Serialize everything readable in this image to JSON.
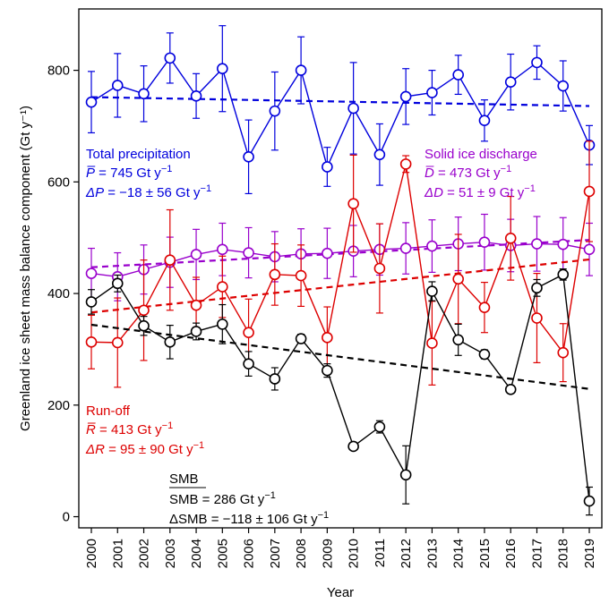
{
  "chart_data": {
    "type": "line",
    "xlabel": "Year",
    "ylabel": "Greenland ice sheet mass balance component (Gt y⁻¹)",
    "x": [
      2000,
      2001,
      2002,
      2003,
      2004,
      2005,
      2006,
      2007,
      2008,
      2009,
      2010,
      2011,
      2012,
      2013,
      2014,
      2015,
      2016,
      2017,
      2018,
      2019
    ],
    "ylim": [
      -20,
      910
    ],
    "yticks": [
      0,
      200,
      400,
      600,
      800
    ],
    "grid": false,
    "series": [
      {
        "key": "precipitation",
        "color": "#0000dd",
        "values": [
          743,
          773,
          758,
          822,
          754,
          803,
          645,
          727,
          800,
          627,
          732,
          649,
          753,
          760,
          792,
          710,
          779,
          814,
          772,
          666
        ],
        "errors": [
          55,
          57,
          50,
          45,
          40,
          77,
          66,
          70,
          60,
          35,
          82,
          55,
          50,
          40,
          35,
          37,
          50,
          30,
          45,
          35
        ],
        "trend": [
          752,
          736
        ]
      },
      {
        "key": "discharge",
        "color": "#9900cc",
        "values": [
          436,
          430,
          443,
          456,
          470,
          479,
          473,
          466,
          471,
          472,
          476,
          479,
          481,
          485,
          489,
          492,
          486,
          489,
          488,
          479
        ],
        "errors": [
          45,
          43,
          44,
          45,
          45,
          47,
          45,
          45,
          45,
          45,
          46,
          46,
          46,
          47,
          48,
          50,
          47,
          49,
          48,
          47
        ],
        "trend": [
          447,
          496
        ]
      },
      {
        "key": "runoff",
        "color": "#dd0000",
        "values": [
          313,
          312,
          370,
          460,
          379,
          412,
          330,
          434,
          432,
          321,
          561,
          445,
          632,
          311,
          426,
          375,
          499,
          356,
          294,
          583
        ],
        "errors": [
          48,
          80,
          90,
          90,
          50,
          55,
          60,
          55,
          55,
          55,
          87,
          80,
          15,
          75,
          80,
          45,
          75,
          80,
          52,
          90
        ],
        "trend": [
          366,
          461
        ]
      },
      {
        "key": "smb",
        "color": "#000000",
        "values": [
          385,
          418,
          342,
          313,
          332,
          345,
          274,
          247,
          319,
          262,
          126,
          161,
          75,
          404,
          317,
          291,
          228,
          410,
          434,
          28
        ],
        "errors": [
          22,
          15,
          17,
          30,
          15,
          35,
          22,
          20,
          8,
          12,
          6,
          11,
          52,
          17,
          28,
          8,
          7,
          15,
          10,
          25
        ],
        "trend": [
          344,
          229
        ]
      }
    ],
    "annotations": {
      "precipitation": {
        "name": "Total precipitation",
        "mean_symbol": "P̅",
        "mean_text": " = 745 Gt y",
        "delta_symbol": "ΔP",
        "delta_text": " = −18 ± 56 Gt y",
        "unit_exp": "−1"
      },
      "discharge": {
        "name": "Solid ice discharge",
        "mean_symbol": "D̅",
        "mean_text": " = 473 Gt y",
        "delta_symbol": "ΔD",
        "delta_text": " = 51 ± 9 Gt y",
        "unit_exp": "−1"
      },
      "runoff": {
        "name": "Run-off",
        "mean_symbol": "R̅",
        "mean_text": " = 413 Gt y",
        "delta_symbol": "ΔR",
        "delta_text": " = 95 ± 90 Gt y",
        "unit_exp": "−1"
      },
      "smb": {
        "name": "SMB",
        "mean_symbol": "SMB",
        "mean_text": " = 286 Gt y",
        "delta_symbol": "ΔSMB",
        "delta_text": " = −118 ± 106 Gt y",
        "unit_exp": "−1"
      }
    }
  }
}
